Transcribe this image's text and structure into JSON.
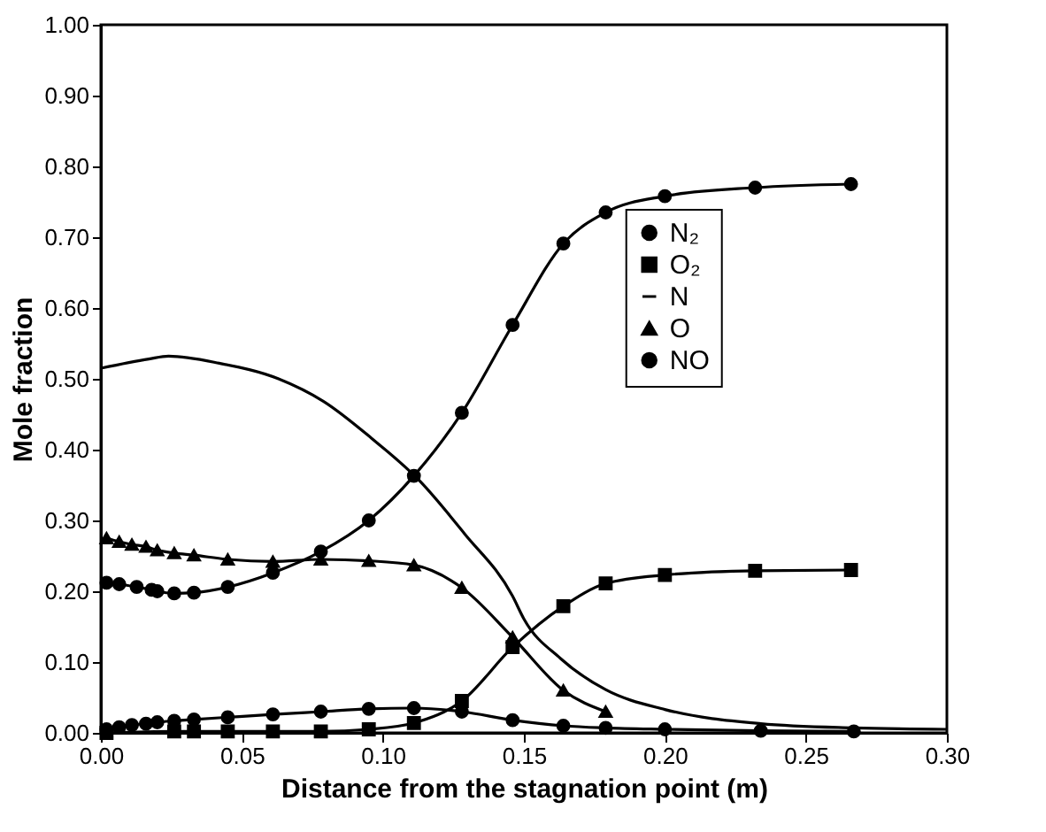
{
  "chart_data": {
    "type": "line",
    "xlabel": "Distance from the stagnation point (m)",
    "ylabel": "Mole fraction",
    "xlim": [
      0,
      0.3
    ],
    "ylim": [
      0,
      1
    ],
    "xticks": [
      {
        "value": 0,
        "label": "0.00"
      },
      {
        "value": 0.05,
        "label": "0.05"
      },
      {
        "value": 0.1,
        "label": "0.10"
      },
      {
        "value": 0.15,
        "label": "0.15"
      },
      {
        "value": 0.2,
        "label": "0.20"
      },
      {
        "value": 0.25,
        "label": "0.25"
      },
      {
        "value": 0.3,
        "label": "0.30"
      }
    ],
    "yticks": [
      {
        "value": 0,
        "label": "0.00"
      },
      {
        "value": 0.1,
        "label": "0.10"
      },
      {
        "value": 0.2,
        "label": "0.20"
      },
      {
        "value": 0.3,
        "label": "0.30"
      },
      {
        "value": 0.4,
        "label": "0.40"
      },
      {
        "value": 0.5,
        "label": "0.50"
      },
      {
        "value": 0.6,
        "label": "0.60"
      },
      {
        "value": 0.7,
        "label": "0.70"
      },
      {
        "value": 0.8,
        "label": "0.80"
      },
      {
        "value": 0.9,
        "label": "0.90"
      },
      {
        "value": 1,
        "label": "1.00"
      }
    ],
    "grid": false,
    "legend": "right",
    "line_style": "solid",
    "series": [
      {
        "name": "N₂",
        "color": "#000000",
        "marker": "circle",
        "x": [
          0.002,
          0.0065,
          0.0127,
          0.018,
          0.02,
          0.026,
          0.033,
          0.045,
          0.061,
          0.078,
          0.095,
          0.111,
          0.128,
          0.146,
          0.164,
          0.179,
          0.2,
          0.232,
          0.266
        ],
        "values": [
          0.212,
          0.21,
          0.206,
          0.202,
          0.2,
          0.197,
          0.198,
          0.206,
          0.226,
          0.256,
          0.3,
          0.363,
          0.452,
          0.576,
          0.691,
          0.735,
          0.758,
          0.77,
          0.775
        ]
      },
      {
        "name": "O₂",
        "color": "#000000",
        "marker": "square",
        "x": [
          0.002,
          0.026,
          0.033,
          0.045,
          0.061,
          0.078,
          0.095,
          0.111,
          0.128,
          0.146,
          0.164,
          0.179,
          0.2,
          0.232,
          0.266
        ],
        "values": [
          0.0,
          0.002,
          0.002,
          0.002,
          0.002,
          0.002,
          0.005,
          0.014,
          0.045,
          0.121,
          0.179,
          0.211,
          0.223,
          0.229,
          0.23
        ]
      },
      {
        "name": "N",
        "color": "#000000",
        "marker": "none",
        "x": [
          0,
          0.017,
          0.024,
          0.042,
          0.063,
          0.079,
          0.096,
          0.113,
          0.129,
          0.146,
          0.15,
          0.163,
          0.179,
          0.2,
          0.234,
          0.267,
          0.3
        ],
        "values": [
          0.515,
          0.528,
          0.532,
          0.522,
          0.5,
          0.468,
          0.416,
          0.356,
          0.281,
          0.193,
          0.161,
          0.105,
          0.061,
          0.033,
          0.013,
          0.007,
          0.005
        ]
      },
      {
        "name": "O",
        "color": "#000000",
        "marker": "triangle",
        "x": [
          0.002,
          0.0065,
          0.011,
          0.016,
          0.02,
          0.026,
          0.033,
          0.045,
          0.061,
          0.078,
          0.095,
          0.111,
          0.128,
          0.146,
          0.164,
          0.179
        ],
        "values": [
          0.275,
          0.27,
          0.266,
          0.263,
          0.258,
          0.254,
          0.251,
          0.245,
          0.242,
          0.245,
          0.243,
          0.237,
          0.205,
          0.135,
          0.06,
          0.03
        ]
      },
      {
        "name": "NO",
        "color": "#000000",
        "marker": "circle",
        "x": [
          0.002,
          0.0065,
          0.011,
          0.016,
          0.02,
          0.026,
          0.033,
          0.045,
          0.061,
          0.078,
          0.095,
          0.111,
          0.128,
          0.146,
          0.164,
          0.179,
          0.2,
          0.234,
          0.267
        ],
        "values": [
          0.005,
          0.008,
          0.011,
          0.013,
          0.015,
          0.017,
          0.019,
          0.022,
          0.026,
          0.03,
          0.034,
          0.035,
          0.03,
          0.018,
          0.01,
          0.007,
          0.005,
          0.003,
          0.002
        ]
      }
    ]
  }
}
